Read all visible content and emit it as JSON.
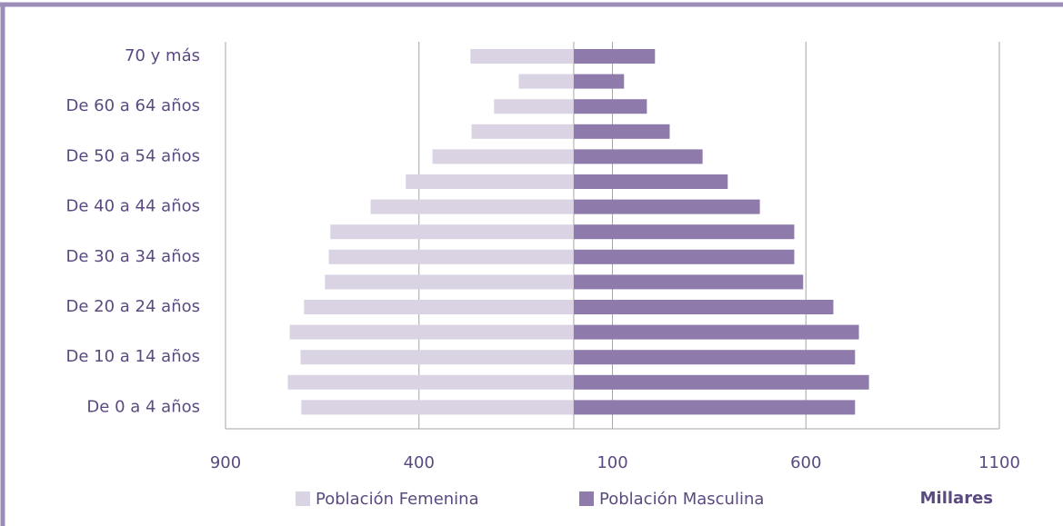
{
  "chart_data": {
    "type": "pyramid",
    "categories": [
      "70 y más",
      null,
      "De 60 a 64 años",
      null,
      "De 50 a 54 años",
      null,
      "De 40 a 44 años",
      null,
      "De 30 a 34 años",
      null,
      "De 20 a 24 años",
      null,
      "De 10 a 14 años",
      null,
      "De 0 a 4 años"
    ],
    "series": [
      {
        "name": "Población Femenina",
        "color": "#d9d3e4",
        "side": "left",
        "values": [
          267,
          142,
          206,
          264,
          365,
          434,
          525,
          629,
          633,
          643,
          697,
          734,
          706,
          739,
          704
        ]
      },
      {
        "name": "Población Masculina",
        "color": "#8e7aab",
        "side": "right",
        "values": [
          210,
          130,
          189,
          248,
          333,
          398,
          481,
          570,
          570,
          593,
          671,
          737,
          727,
          763,
          727
        ]
      }
    ],
    "xlim": [
      -900,
      1100
    ],
    "xticks": [
      {
        "value": -900,
        "label": "900"
      },
      {
        "value": -400,
        "label": "400"
      },
      100,
      600,
      1100
    ],
    "unit_label": "Millares",
    "grid": true
  }
}
